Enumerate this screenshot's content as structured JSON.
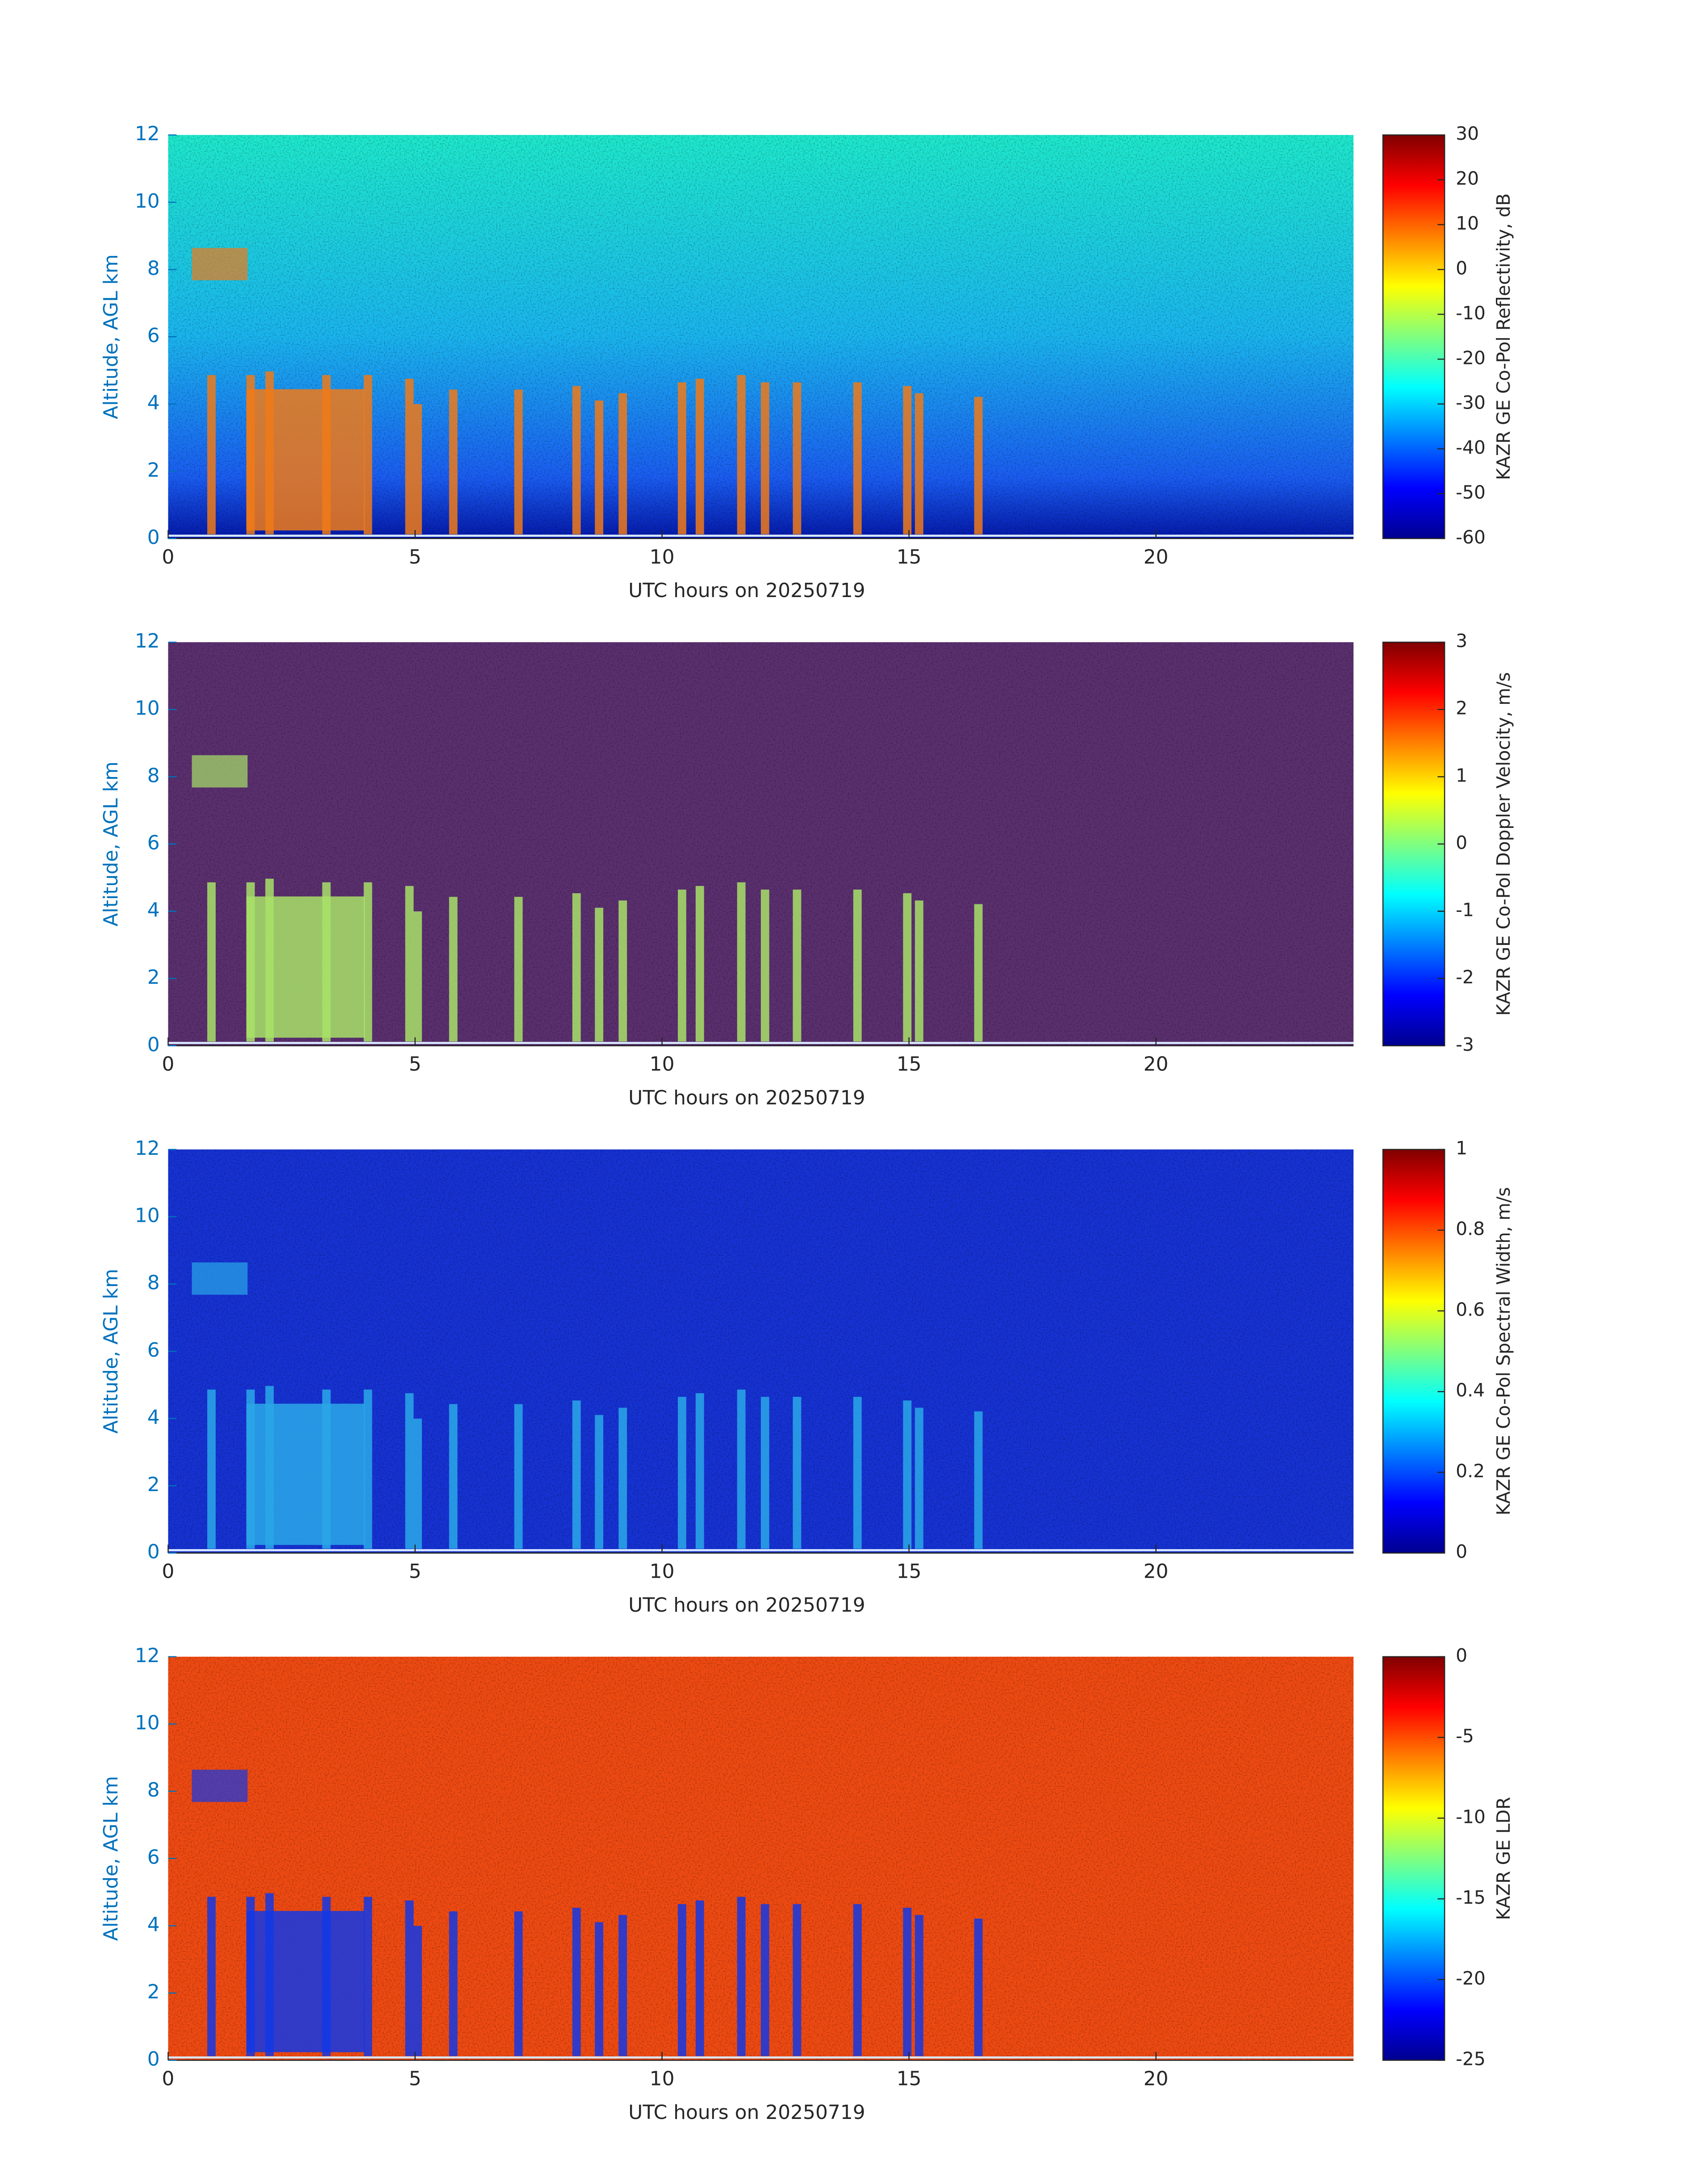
{
  "chart_data": [
    {
      "type": "heatmap",
      "xlabel": "UTC hours on 20250719",
      "ylabel": "Altitude, AGL km",
      "xlim": [
        0,
        24
      ],
      "xticks": [
        0,
        5,
        10,
        15,
        20
      ],
      "ylim": [
        0,
        12
      ],
      "yticks": [
        0,
        2,
        4,
        6,
        8,
        10,
        12
      ],
      "colormap": "jet",
      "colorbar_label": "KAZR GE Co-Pol Reflectivity, dB",
      "clim": [
        -60,
        30
      ],
      "cticks": [
        -60,
        -50,
        -40,
        -30,
        -20,
        -10,
        0,
        10,
        20,
        30
      ]
    },
    {
      "type": "heatmap",
      "xlabel": "UTC hours on 20250719",
      "ylabel": "Altitude, AGL km",
      "xlim": [
        0,
        24
      ],
      "xticks": [
        0,
        5,
        10,
        15,
        20
      ],
      "ylim": [
        0,
        12
      ],
      "yticks": [
        0,
        2,
        4,
        6,
        8,
        10,
        12
      ],
      "colormap": "jet",
      "colorbar_label": "KAZR GE Co-Pol Doppler Velocity, m/s",
      "clim": [
        -3,
        3
      ],
      "cticks": [
        -3,
        -2,
        -1,
        0,
        1,
        2,
        3
      ]
    },
    {
      "type": "heatmap",
      "xlabel": "UTC hours on 20250719",
      "ylabel": "Altitude, AGL km",
      "xlim": [
        0,
        24
      ],
      "xticks": [
        0,
        5,
        10,
        15,
        20
      ],
      "ylim": [
        0,
        12
      ],
      "yticks": [
        0,
        2,
        4,
        6,
        8,
        10,
        12
      ],
      "colormap": "jet",
      "colorbar_label": "KAZR GE Co-Pol Spectral Width, m/s",
      "clim": [
        0,
        1
      ],
      "cticks": [
        0,
        0.2,
        0.4,
        0.6,
        0.8,
        1
      ]
    },
    {
      "type": "heatmap",
      "xlabel": "UTC hours on 20250719",
      "ylabel": "Altitude, AGL km",
      "xlim": [
        0,
        24
      ],
      "xticks": [
        0,
        5,
        10,
        15,
        20
      ],
      "ylim": [
        0,
        12
      ],
      "yticks": [
        0,
        2,
        4,
        6,
        8,
        10,
        12
      ],
      "colormap": "jet",
      "colorbar_label": "KAZR GE LDR",
      "clim": [
        -25,
        0
      ],
      "cticks": [
        -25,
        -20,
        -15,
        -10,
        -5,
        0
      ]
    }
  ]
}
